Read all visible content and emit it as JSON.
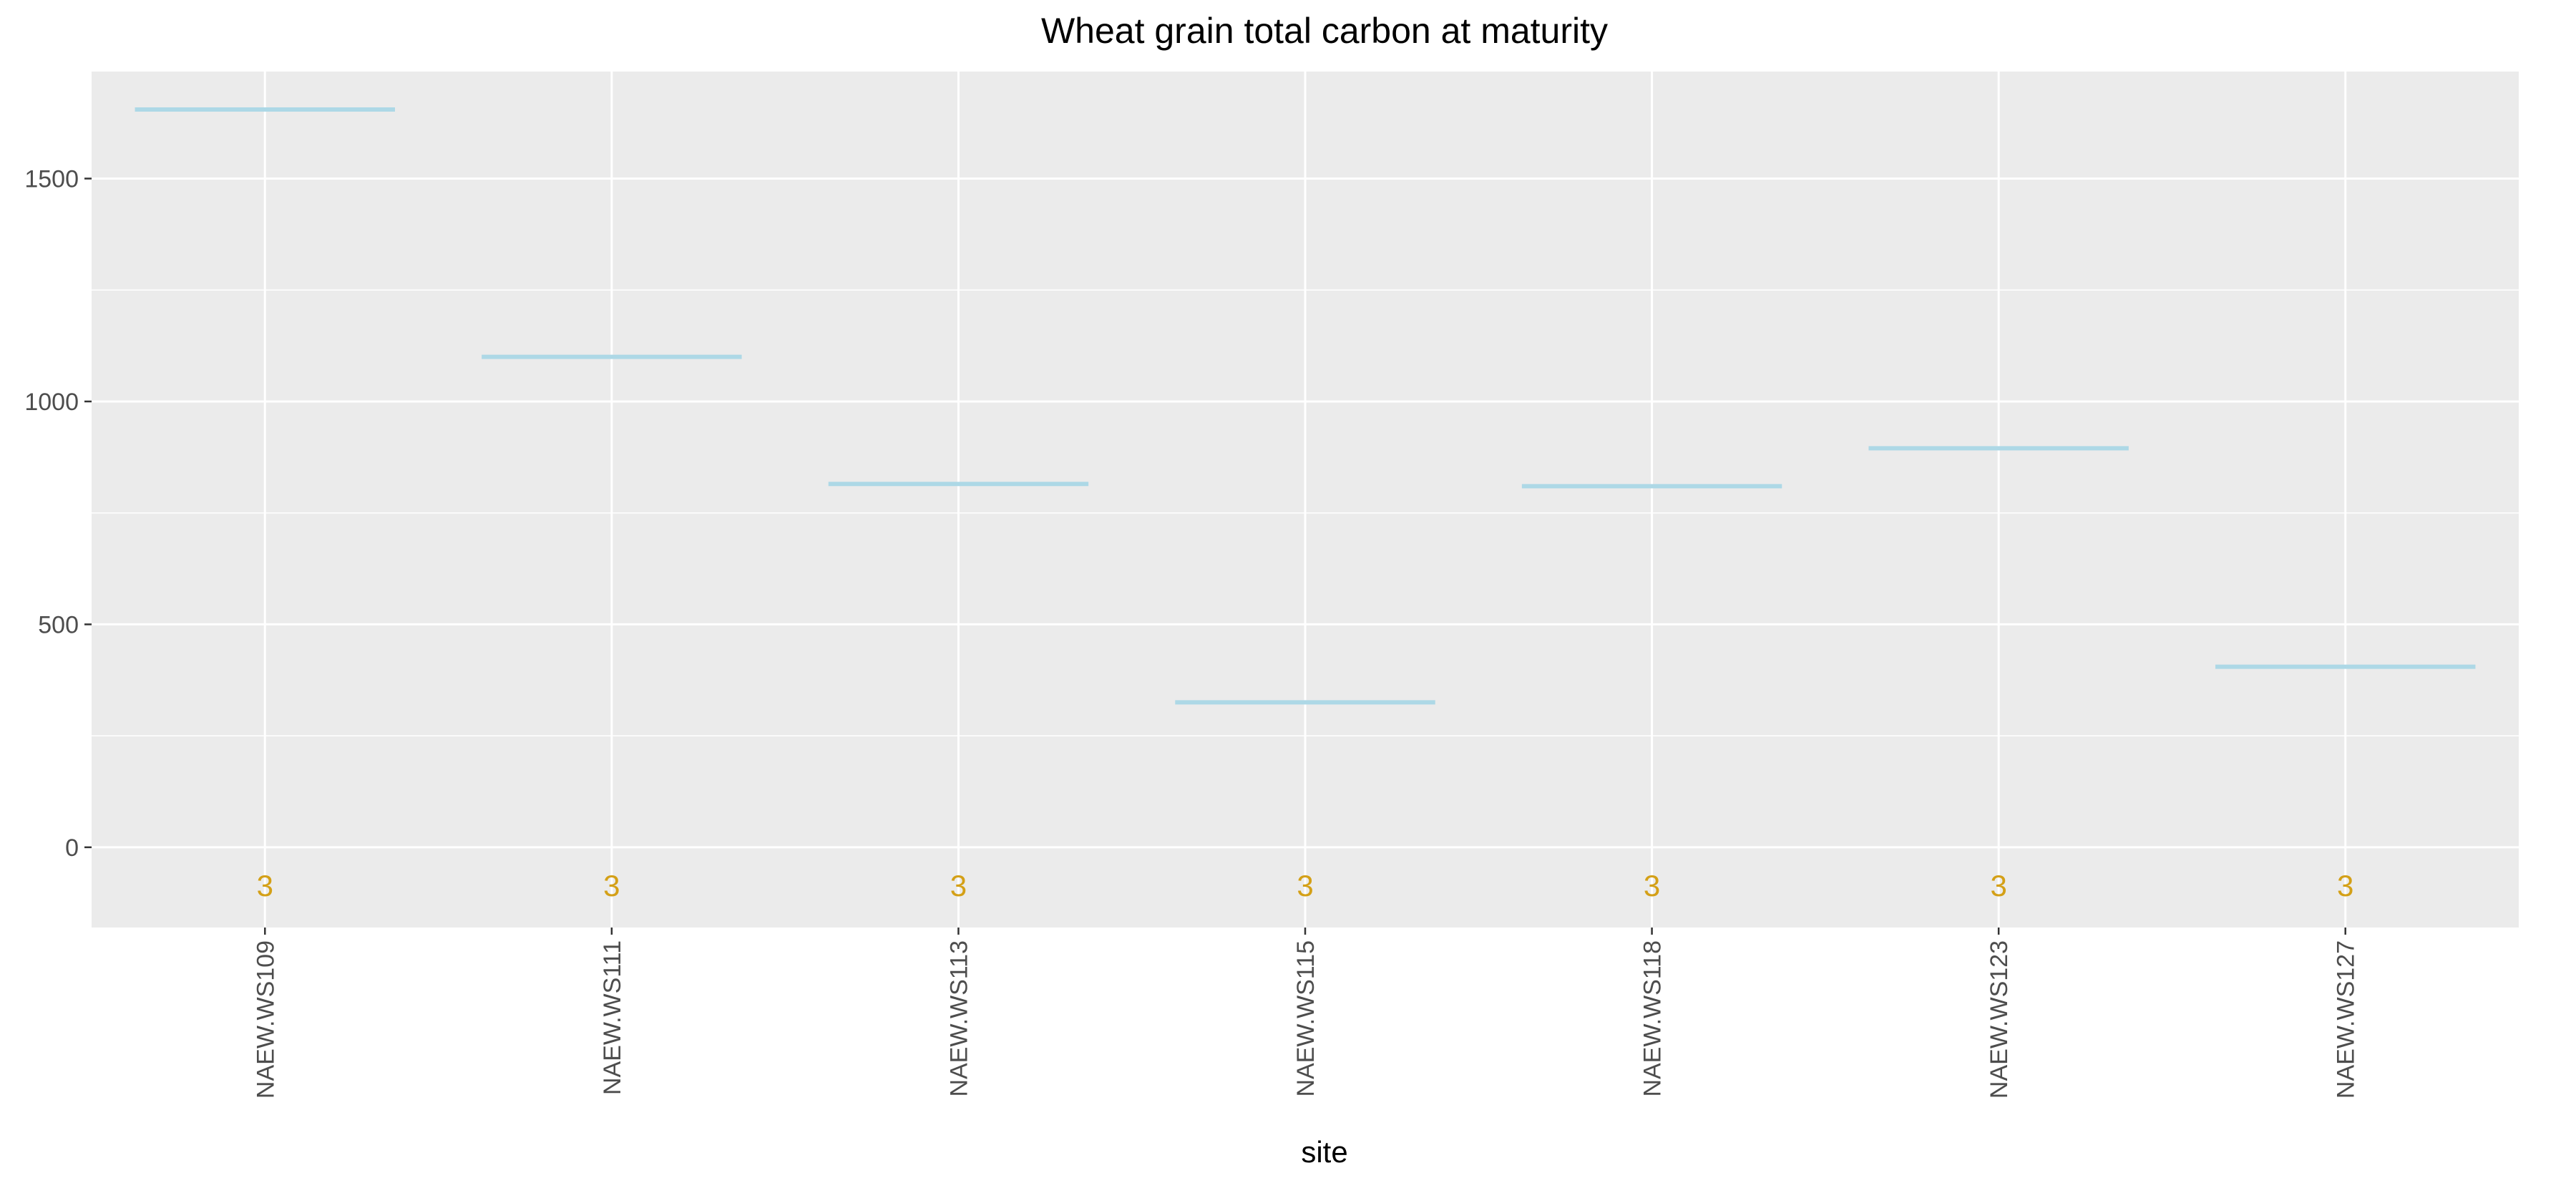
{
  "chart_data": {
    "type": "bar",
    "title": "Wheat grain total carbon at maturity",
    "xlabel": "site",
    "ylabel": "",
    "categories": [
      "NAEW.WS109",
      "NAEW.WS111",
      "NAEW.WS113",
      "NAEW.WS115",
      "NAEW.WS118",
      "NAEW.WS123",
      "NAEW.WS127"
    ],
    "values": [
      1655,
      1100,
      815,
      325,
      810,
      895,
      405
    ],
    "count_labels": [
      "3",
      "3",
      "3",
      "3",
      "3",
      "3",
      "3"
    ],
    "count_label_y": -85,
    "ylim": [
      -180,
      1740
    ],
    "yticks": [
      0,
      500,
      1000,
      1500
    ],
    "ytick_labels": [
      "0",
      "500",
      "1000",
      "1500"
    ],
    "grid": true,
    "legend": "none",
    "colors": {
      "mark": "#add8e6",
      "count_label": "#d4a017",
      "panel": "#ebebeb",
      "grid": "#ffffff"
    }
  }
}
